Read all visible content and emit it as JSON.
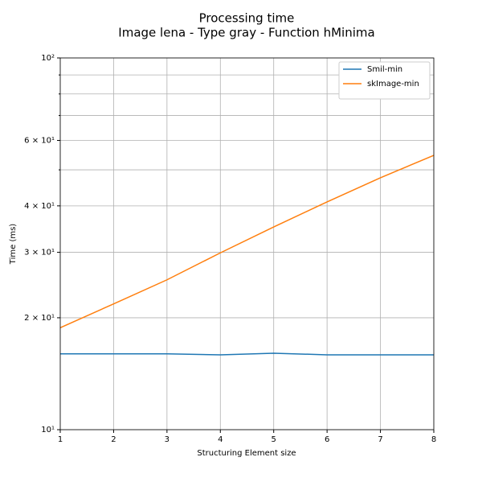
{
  "chart_data": {
    "type": "line",
    "title": "Processing time",
    "subtitle": "Image lena - Type gray - Function hMinima",
    "x_label": "Structuring Element size",
    "y_label": "Time (ms)",
    "x": [
      1,
      2,
      3,
      4,
      5,
      6,
      7,
      8
    ],
    "series": [
      {
        "name": "Smil-min",
        "color": "#1f77b4",
        "values": [
          16.0,
          16.0,
          16.0,
          15.9,
          16.06,
          15.9,
          15.9,
          15.9
        ]
      },
      {
        "name": "skImage-min",
        "color": "#ff7f0e",
        "values": [
          18.8,
          21.8,
          25.3,
          29.9,
          35.1,
          41.0,
          47.6,
          54.7
        ]
      }
    ],
    "xlim": [
      1,
      8
    ],
    "xticks": [
      1,
      2,
      3,
      4,
      5,
      6,
      7,
      8
    ],
    "ylim": [
      10,
      100
    ],
    "y_log": true,
    "yticks": [
      {
        "value": 10,
        "label": "10¹"
      },
      {
        "value": 20,
        "label": "2 × 10¹"
      },
      {
        "value": 30,
        "label": "3 × 10¹"
      },
      {
        "value": 40,
        "label": "4 × 10¹"
      },
      {
        "value": 60,
        "label": "6 × 10¹"
      },
      {
        "value": 100,
        "label": "10²"
      }
    ],
    "yminorticks": [
      50,
      70,
      80,
      90
    ],
    "grid": true,
    "legend_position": "upper right"
  }
}
